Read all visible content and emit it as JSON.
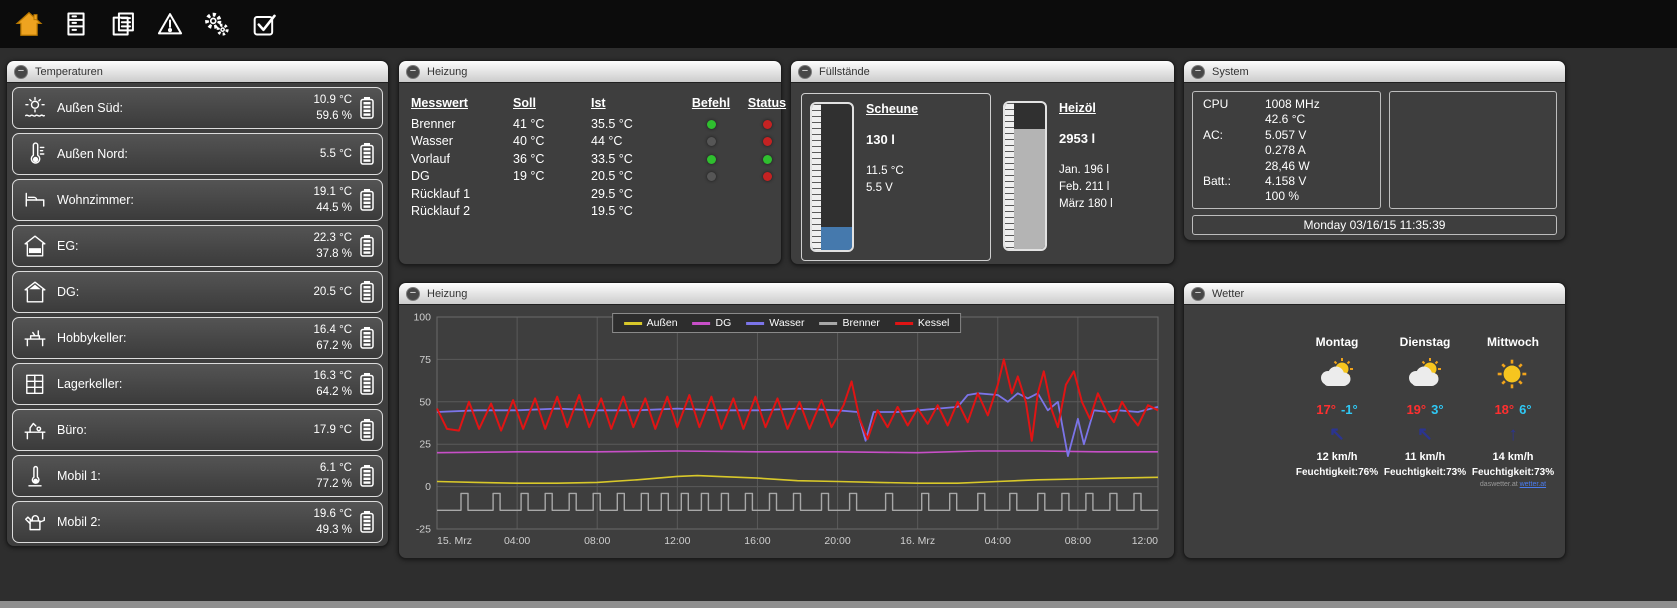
{
  "ui": {
    "collapse_glyph": "−"
  },
  "toolbar": {
    "items": [
      {
        "name": "home-icon"
      },
      {
        "name": "building-icon"
      },
      {
        "name": "pages-icon"
      },
      {
        "name": "warning-icon"
      },
      {
        "name": "gears-icon"
      },
      {
        "name": "tasks-icon"
      }
    ]
  },
  "panels": {
    "temperaturen": {
      "title": "Temperaturen",
      "rows": [
        {
          "icon": "sun-waves-icon",
          "label": "Außen Süd:",
          "temp": "10.9 °C",
          "humidity": "59.6 %"
        },
        {
          "icon": "thermometer-icon",
          "label": "Außen Nord:",
          "temp": "5.5 °C",
          "humidity": ""
        },
        {
          "icon": "sofa-icon",
          "label": "Wohnzimmer:",
          "temp": "19.1 °C",
          "humidity": "44.5 %"
        },
        {
          "icon": "floor-eg-icon",
          "label": "EG:",
          "temp": "22.3 °C",
          "humidity": "37.8 %"
        },
        {
          "icon": "floor-dg-icon",
          "label": "DG:",
          "temp": "20.5 °C",
          "humidity": ""
        },
        {
          "icon": "workbench-icon",
          "label": "Hobbykeller:",
          "temp": "16.4 °C",
          "humidity": "67.2 %"
        },
        {
          "icon": "storage-shelf-icon",
          "label": "Lagerkeller:",
          "temp": "16.3 °C",
          "humidity": "64.2 %"
        },
        {
          "icon": "desk-icon",
          "label": "Büro:",
          "temp": "17.9 °C",
          "humidity": ""
        },
        {
          "icon": "mobile-thermometer-icon",
          "label": "Mobil 1:",
          "temp": "6.1 °C",
          "humidity": "77.2 %"
        },
        {
          "icon": "watering-can-icon",
          "label": "Mobil 2:",
          "temp": "19.6 °C",
          "humidity": "49.3 %"
        }
      ]
    },
    "heizung_table": {
      "title": "Heizung",
      "headers": {
        "messwert": "Messwert",
        "soll": "Soll",
        "ist": "Ist",
        "befehl": "Befehl",
        "status": "Status"
      },
      "rows": [
        {
          "name": "Brenner",
          "soll": "41 °C",
          "ist": "35.5 °C",
          "befehl_color": "#2fbf2f",
          "status_color": "#c42222"
        },
        {
          "name": "Wasser",
          "soll": "40 °C",
          "ist": "44 °C",
          "befehl_color": "#565656",
          "status_color": "#c42222"
        },
        {
          "name": "Vorlauf",
          "soll": "36 °C",
          "ist": "33.5 °C",
          "befehl_color": "#2fbf2f",
          "status_color": "#2fbf2f"
        },
        {
          "name": "DG",
          "soll": "19 °C",
          "ist": "20.5 °C",
          "befehl_color": "#565656",
          "status_color": "#c42222"
        },
        {
          "name": "Rücklauf 1",
          "soll": "",
          "ist": "29.5 °C",
          "befehl_color": "",
          "status_color": ""
        },
        {
          "name": "Rücklauf 2",
          "soll": "",
          "ist": "19.5 °C",
          "befehl_color": "",
          "status_color": ""
        }
      ]
    },
    "fuellstaende": {
      "title": "Füllstände",
      "tanks": [
        {
          "name": "Scheune",
          "amount": "130 l",
          "details": [
            "11.5 °C",
            "5.5 V"
          ],
          "fill_percent": 16,
          "fill_color": "#4579ad"
        },
        {
          "name": "Heizöl",
          "amount": "2953 l",
          "details": [
            "Jan. 196 l",
            "Feb. 211 l",
            "März 180 l"
          ],
          "fill_percent": 82,
          "fill_color": "#b4b4b4"
        }
      ]
    },
    "system": {
      "title": "System",
      "stats": [
        {
          "label": "CPU",
          "value": "1008 MHz"
        },
        {
          "label": "",
          "value": "42.6 °C"
        },
        {
          "label": "AC:",
          "value": "5.057 V"
        },
        {
          "label": "",
          "value": "0.278 A"
        },
        {
          "label": "",
          "value": "28,46 W"
        },
        {
          "label": "Batt.:",
          "value": "4.158 V"
        },
        {
          "label": "",
          "value": "100 %"
        }
      ],
      "datetime": "Monday 03/16/15 11:35:39"
    },
    "heizung_chart": {
      "title": "Heizung",
      "chart_data": {
        "type": "line",
        "xlim": [
          0,
          36
        ],
        "ylim": [
          -25,
          100
        ],
        "yticks": [
          100,
          75,
          50,
          25,
          0,
          -25
        ],
        "xticks": [
          {
            "x": 0,
            "label": "15. Mrz"
          },
          {
            "x": 4,
            "label": "04:00"
          },
          {
            "x": 8,
            "label": "08:00"
          },
          {
            "x": 12,
            "label": "12:00"
          },
          {
            "x": 16,
            "label": "16:00"
          },
          {
            "x": 20,
            "label": "20:00"
          },
          {
            "x": 24,
            "label": "16. Mrz"
          },
          {
            "x": 28,
            "label": "04:00"
          },
          {
            "x": 32,
            "label": "08:00"
          },
          {
            "x": 36,
            "label": "12:00"
          }
        ],
        "legend_position": "top-center",
        "grid": true,
        "series": [
          {
            "name": "Außen",
            "color": "#d8c82a",
            "stroke_width": 1.6,
            "points": [
              [
                0,
                3
              ],
              [
                2,
                2.5
              ],
              [
                4,
                2
              ],
              [
                6,
                2
              ],
              [
                8,
                2.5
              ],
              [
                10,
                4
              ],
              [
                12,
                6
              ],
              [
                13,
                6.5
              ],
              [
                14,
                6
              ],
              [
                16,
                5
              ],
              [
                18,
                3.5
              ],
              [
                20,
                3
              ],
              [
                22,
                2.5
              ],
              [
                24,
                2
              ],
              [
                26,
                2
              ],
              [
                28,
                3
              ],
              [
                30,
                4
              ],
              [
                32,
                4.5
              ],
              [
                34,
                5
              ],
              [
                36,
                5.5
              ]
            ]
          },
          {
            "name": "DG",
            "color": "#c84fc8",
            "stroke_width": 1.6,
            "points": [
              [
                0,
                20
              ],
              [
                4,
                20.5
              ],
              [
                8,
                20.5
              ],
              [
                12,
                21
              ],
              [
                16,
                20.5
              ],
              [
                20,
                20.5
              ],
              [
                24,
                20
              ],
              [
                27,
                21
              ],
              [
                30,
                21
              ],
              [
                33,
                20.5
              ],
              [
                36,
                20.5
              ]
            ]
          },
          {
            "name": "Wasser",
            "color": "#7b74e8",
            "stroke_width": 1.8,
            "points": [
              [
                0,
                44
              ],
              [
                2,
                45
              ],
              [
                4,
                45
              ],
              [
                6,
                46
              ],
              [
                8,
                45
              ],
              [
                10,
                45
              ],
              [
                12,
                46
              ],
              [
                14,
                45
              ],
              [
                16,
                45
              ],
              [
                18,
                46
              ],
              [
                20,
                45
              ],
              [
                21,
                44
              ],
              [
                21.4,
                27
              ],
              [
                21.8,
                44
              ],
              [
                23,
                44
              ],
              [
                24,
                45
              ],
              [
                25,
                46
              ],
              [
                26,
                47
              ],
              [
                26.5,
                54
              ],
              [
                27,
                55
              ],
              [
                28,
                54
              ],
              [
                28.5,
                50
              ],
              [
                29,
                55
              ],
              [
                29.5,
                52
              ],
              [
                30,
                55
              ],
              [
                30.5,
                45
              ],
              [
                31,
                50
              ],
              [
                31.5,
                18
              ],
              [
                32,
                40
              ],
              [
                32.3,
                25
              ],
              [
                32.8,
                45
              ],
              [
                33.5,
                44
              ],
              [
                34,
                45
              ],
              [
                35,
                44
              ],
              [
                36,
                47
              ]
            ]
          },
          {
            "name": "Brenner",
            "color": "#a8a8a8",
            "stroke_width": 1.4,
            "pulse_base": -14,
            "pulse_top": -4,
            "pulse_width": 0.35,
            "pulses": [
              1.2,
              2.8,
              4.2,
              5.4,
              6.6,
              7.8,
              9.0,
              10.2,
              11.2,
              12.2,
              13.2,
              14.2,
              15.4,
              16.6,
              17.8,
              19.2,
              20.6,
              22.4,
              24.2,
              25.6,
              27.0,
              28.6,
              30.0,
              31.2,
              32.4,
              33.6,
              34.8
            ]
          },
          {
            "name": "Kessel",
            "color": "#e01414",
            "stroke_width": 2,
            "points": [
              [
                0,
                46
              ],
              [
                0.5,
                34
              ],
              [
                1.1,
                33
              ],
              [
                1.6,
                50
              ],
              [
                2.1,
                34
              ],
              [
                2.7,
                49
              ],
              [
                3.2,
                33
              ],
              [
                3.8,
                51
              ],
              [
                4.3,
                34
              ],
              [
                4.9,
                52
              ],
              [
                5.4,
                34
              ],
              [
                6,
                53
              ],
              [
                6.5,
                35
              ],
              [
                7.1,
                54
              ],
              [
                7.6,
                35
              ],
              [
                8.2,
                52
              ],
              [
                8.7,
                34
              ],
              [
                9.3,
                53
              ],
              [
                9.8,
                35
              ],
              [
                10.4,
                52
              ],
              [
                10.9,
                34
              ],
              [
                11.5,
                53
              ],
              [
                12,
                35
              ],
              [
                12.6,
                54
              ],
              [
                13.1,
                35
              ],
              [
                13.7,
                53
              ],
              [
                14.2,
                34
              ],
              [
                14.8,
                52
              ],
              [
                15.3,
                34
              ],
              [
                15.9,
                53
              ],
              [
                16.4,
                35
              ],
              [
                17,
                52
              ],
              [
                17.5,
                34
              ],
              [
                18.1,
                50
              ],
              [
                18.6,
                34
              ],
              [
                19.2,
                51
              ],
              [
                19.7,
                35
              ],
              [
                20.3,
                48
              ],
              [
                20.7,
                62
              ],
              [
                21.1,
                40
              ],
              [
                21.5,
                28
              ],
              [
                22,
                45
              ],
              [
                22.5,
                35
              ],
              [
                23,
                47
              ],
              [
                23.5,
                36
              ],
              [
                24,
                46
              ],
              [
                24.5,
                37
              ],
              [
                25,
                48
              ],
              [
                25.5,
                36
              ],
              [
                26,
                50
              ],
              [
                26.5,
                38
              ],
              [
                27,
                55
              ],
              [
                27.5,
                42
              ],
              [
                28,
                60
              ],
              [
                28.3,
                75
              ],
              [
                28.7,
                55
              ],
              [
                29,
                65
              ],
              [
                29.4,
                50
              ],
              [
                29.7,
                27
              ],
              [
                30,
                55
              ],
              [
                30.3,
                68
              ],
              [
                30.7,
                45
              ],
              [
                31,
                35
              ],
              [
                31.4,
                60
              ],
              [
                31.8,
                68
              ],
              [
                32.2,
                50
              ],
              [
                32.6,
                40
              ],
              [
                33,
                55
              ],
              [
                33.4,
                45
              ],
              [
                33.8,
                38
              ],
              [
                34.2,
                50
              ],
              [
                34.6,
                42
              ],
              [
                35,
                36
              ],
              [
                35.5,
                48
              ],
              [
                36,
                45
              ]
            ]
          }
        ]
      }
    },
    "wetter": {
      "title": "Wetter",
      "days": [
        {
          "name": "Montag",
          "icon": "partly-cloudy",
          "high": "17°",
          "low": "-1°",
          "wind_arrow": "↖",
          "wind": "12 km/h",
          "humidity": "Feuchtigkeit:76%"
        },
        {
          "name": "Dienstag",
          "icon": "partly-cloudy",
          "high": "19°",
          "low": "3°",
          "wind_arrow": "↖",
          "wind": "11 km/h",
          "humidity": "Feuchtigkeit:73%"
        },
        {
          "name": "Mittwoch",
          "icon": "sunny",
          "high": "18°",
          "low": "6°",
          "wind_arrow": "↑",
          "wind": "14 km/h",
          "humidity": "Feuchtigkeit:73%"
        }
      ],
      "credit_text": "daswetter.at",
      "credit_link": "wetter.at"
    }
  }
}
